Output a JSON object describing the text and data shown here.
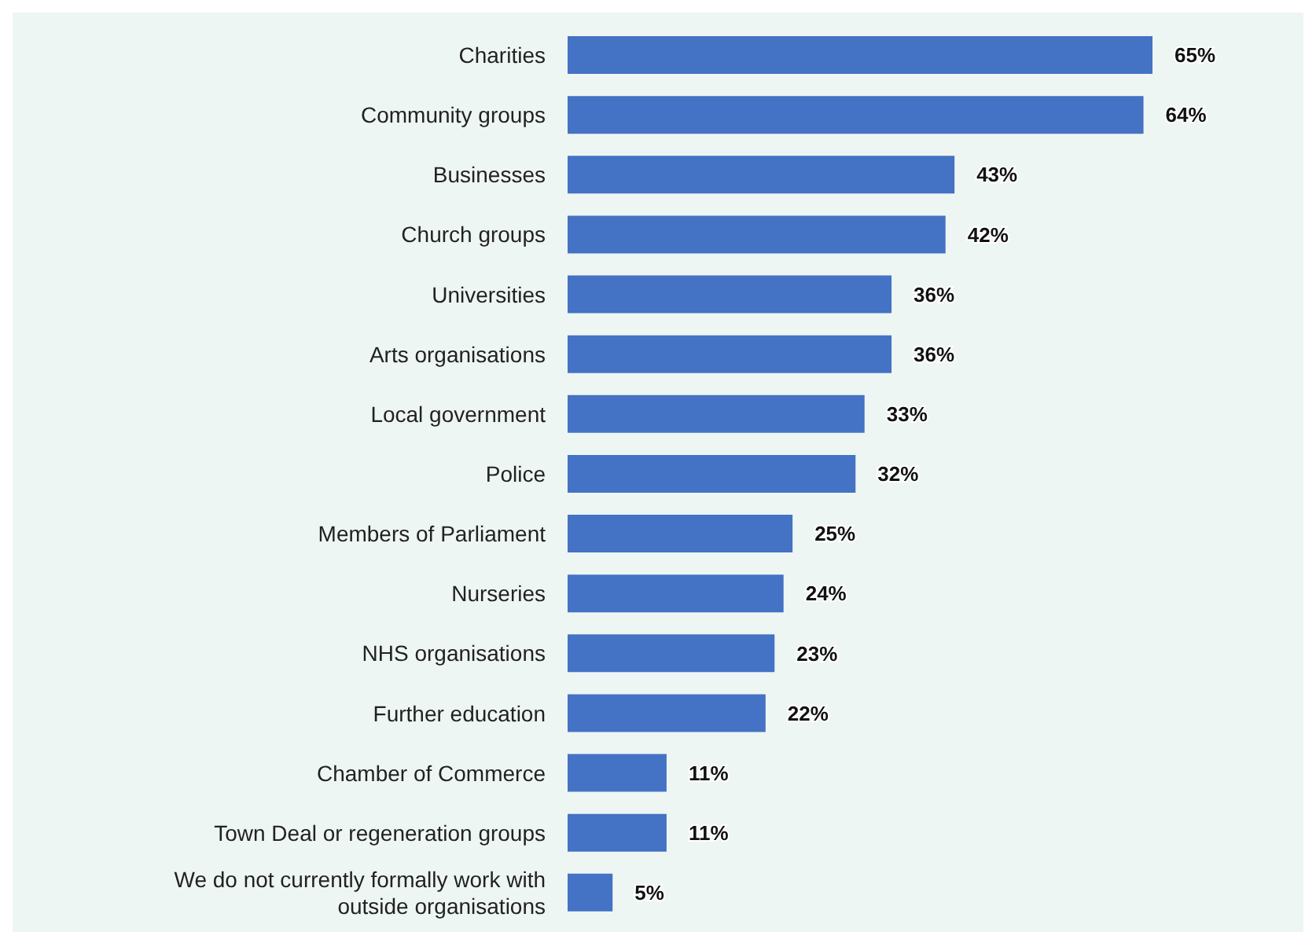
{
  "chart_data": {
    "type": "bar",
    "orientation": "horizontal",
    "categories": [
      "Charities",
      "Community groups",
      "Businesses",
      "Church groups",
      "Universities",
      "Arts organisations",
      "Local government",
      "Police",
      "Members of Parliament",
      "Nurseries",
      "NHS organisations",
      "Further education",
      "Chamber of Commerce",
      "Town Deal or regeneration groups",
      "We do not currently formally work with outside organisations"
    ],
    "values": [
      65,
      64,
      43,
      42,
      36,
      36,
      33,
      32,
      25,
      24,
      23,
      22,
      11,
      11,
      5
    ],
    "value_labels": [
      "65%",
      "64%",
      "43%",
      "42%",
      "36%",
      "36%",
      "33%",
      "32%",
      "25%",
      "24%",
      "23%",
      "22%",
      "11%",
      "11%",
      "5%"
    ],
    "color": "#4472c4",
    "grid": false,
    "legend": false
  }
}
